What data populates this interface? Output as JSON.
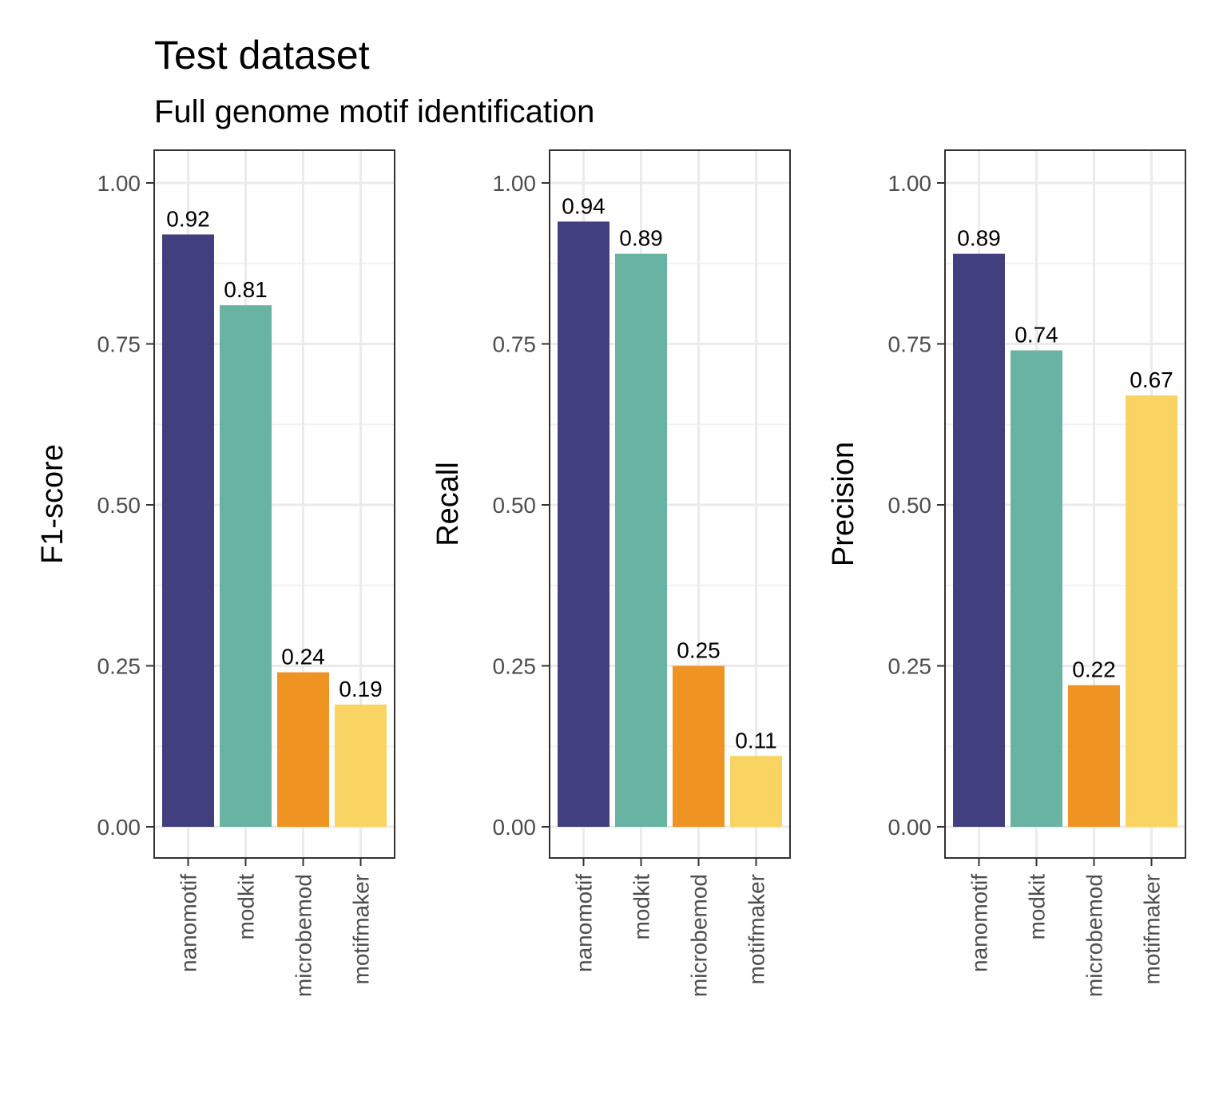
{
  "figure": {
    "title": "Test dataset",
    "subtitle": "Full genome motif identification"
  },
  "chart_data": [
    {
      "type": "bar",
      "ylabel": "F1-score",
      "xlabel": "",
      "categories": [
        "nanomotif",
        "modkit",
        "microbemod",
        "motifmaker"
      ],
      "values": [
        0.92,
        0.81,
        0.24,
        0.19
      ],
      "data_labels": [
        "0.92",
        "0.81",
        "0.24",
        "0.19"
      ],
      "colors": [
        "#413f7e",
        "#69b3a2",
        "#ef9422",
        "#f9d462"
      ],
      "ylim": [
        0,
        1
      ],
      "yticks": [
        0,
        0.25,
        0.5,
        0.75,
        1
      ],
      "ytick_labels": [
        "0.00",
        "0.25",
        "0.50",
        "0.75",
        "1.00"
      ],
      "grid": true
    },
    {
      "type": "bar",
      "ylabel": "Recall",
      "xlabel": "",
      "categories": [
        "nanomotif",
        "modkit",
        "microbemod",
        "motifmaker"
      ],
      "values": [
        0.94,
        0.89,
        0.25,
        0.11
      ],
      "data_labels": [
        "0.94",
        "0.89",
        "0.25",
        "0.11"
      ],
      "colors": [
        "#413f7e",
        "#69b3a2",
        "#ef9422",
        "#f9d462"
      ],
      "ylim": [
        0,
        1
      ],
      "yticks": [
        0,
        0.25,
        0.5,
        0.75,
        1
      ],
      "ytick_labels": [
        "0.00",
        "0.25",
        "0.50",
        "0.75",
        "1.00"
      ],
      "grid": true
    },
    {
      "type": "bar",
      "ylabel": "Precision",
      "xlabel": "",
      "categories": [
        "nanomotif",
        "modkit",
        "microbemod",
        "motifmaker"
      ],
      "values": [
        0.89,
        0.74,
        0.22,
        0.67
      ],
      "data_labels": [
        "0.89",
        "0.74",
        "0.22",
        "0.67"
      ],
      "colors": [
        "#413f7e",
        "#69b3a2",
        "#ef9422",
        "#f9d462"
      ],
      "ylim": [
        0,
        1
      ],
      "yticks": [
        0,
        0.25,
        0.5,
        0.75,
        1
      ],
      "ytick_labels": [
        "0.00",
        "0.25",
        "0.50",
        "0.75",
        "1.00"
      ],
      "grid": true
    }
  ]
}
